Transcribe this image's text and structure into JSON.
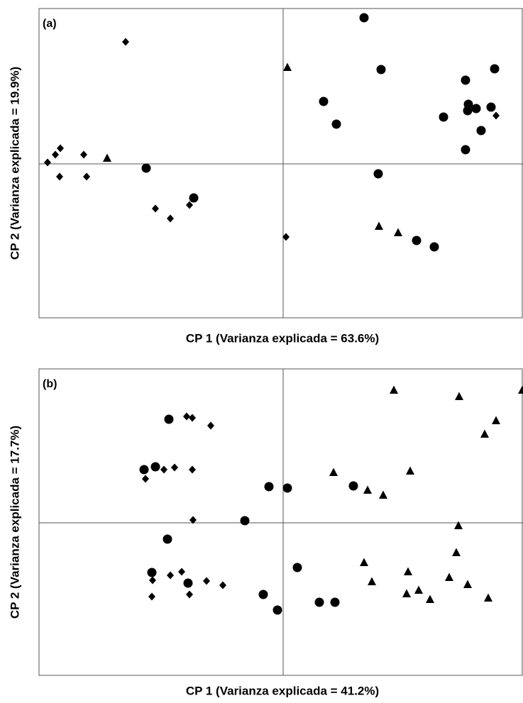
{
  "chart_data": [
    {
      "type": "scatter",
      "annotation": "(a)",
      "xlabel": "CP 1 (Varianza explicada = 63.6%)",
      "ylabel": "CP 2 (Varianza explicada = 19.9%)",
      "xlim": [
        -3.44,
        3.38
      ],
      "ylim": [
        -2.17,
        2.19
      ],
      "zero_lines": true,
      "series": [
        {
          "marker": "diamond",
          "color": "#000000",
          "x": [
            -2.22,
            -3.32,
            -3.21,
            -3.14,
            -3.15,
            -2.81,
            -2.77,
            -1.8,
            -1.59,
            -1.32,
            0.04,
            3.0
          ],
          "values": [
            1.72,
            0.02,
            0.13,
            0.22,
            -0.18,
            0.13,
            -0.18,
            -0.63,
            -0.77,
            -0.58,
            -1.03,
            0.68
          ]
        },
        {
          "marker": "circle",
          "color": "#000000",
          "x": [
            1.14,
            1.38,
            0.57,
            0.75,
            -1.93,
            -1.26,
            1.34,
            2.57,
            2.98,
            2.61,
            2.6,
            2.72,
            2.93,
            2.26,
            2.79,
            2.57,
            1.88,
            2.13
          ],
          "values": [
            2.06,
            1.33,
            0.88,
            0.56,
            -0.06,
            -0.48,
            -0.14,
            1.18,
            1.34,
            0.84,
            0.75,
            0.78,
            0.8,
            0.66,
            0.47,
            0.2,
            -1.08,
            -1.17
          ]
        },
        {
          "marker": "triangle",
          "color": "#000000",
          "x": [
            0.06,
            -2.48,
            1.35,
            1.62
          ],
          "values": [
            1.36,
            0.08,
            -0.88,
            -0.97
          ]
        }
      ]
    },
    {
      "type": "scatter",
      "annotation": "(b)",
      "xlabel": "CP 1 (Varianza explicada = 41.2%)",
      "ylabel": "CP 2 (Varianza explicada = 17.7%)",
      "xlim": [
        -3.44,
        3.38
      ],
      "ylim": [
        -2.15,
        2.17
      ],
      "zero_lines": true,
      "series": [
        {
          "marker": "diamond",
          "color": "#000000",
          "x": [
            -1.36,
            -1.28,
            -1.02,
            -1.94,
            -1.68,
            -1.53,
            -1.28,
            -1.27,
            -1.84,
            -1.59,
            -1.43,
            -1.08,
            -0.85,
            -1.85,
            -1.32
          ],
          "values": [
            1.5,
            1.48,
            1.37,
            0.62,
            0.75,
            0.78,
            0.75,
            0.04,
            -0.81,
            -0.74,
            -0.69,
            -0.82,
            -0.88,
            -1.04,
            -1.01
          ]
        },
        {
          "marker": "circle",
          "color": "#000000",
          "x": [
            -1.61,
            -1.96,
            -1.8,
            -1.63,
            -1.85,
            -1.34,
            -0.2,
            0.06,
            -0.54,
            0.99,
            0.2,
            -0.28,
            -0.08,
            0.51,
            0.73
          ],
          "values": [
            1.46,
            0.75,
            0.79,
            -0.23,
            -0.7,
            -0.85,
            0.51,
            0.49,
            0.03,
            0.52,
            -0.63,
            -1.01,
            -1.23,
            -1.12,
            -1.12
          ]
        },
        {
          "marker": "triangle",
          "color": "#000000",
          "x": [
            1.56,
            2.48,
            3.37,
            3.0,
            2.84,
            0.71,
            1.79,
            1.19,
            1.41,
            2.47,
            2.44,
            1.14,
            1.76,
            1.25,
            1.74,
            1.91,
            2.07,
            2.34,
            2.6,
            2.89
          ],
          "values": [
            1.87,
            1.78,
            1.87,
            1.44,
            1.25,
            0.71,
            0.73,
            0.46,
            0.39,
            -0.04,
            -0.42,
            -0.56,
            -0.69,
            -0.83,
            -1.0,
            -0.95,
            -1.08,
            -0.77,
            -0.87,
            -1.06
          ]
        }
      ]
    }
  ]
}
